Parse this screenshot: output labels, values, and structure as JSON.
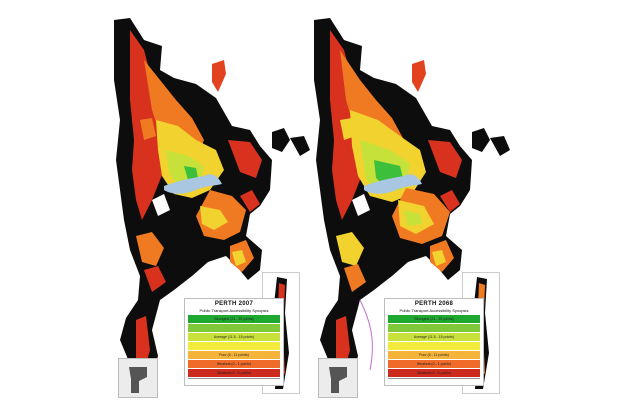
{
  "panels": [
    {
      "title": "PERTH 2007",
      "subtitle": "Public Transport Accessibility Synopsis",
      "legend": [
        {
          "label": "Strongest (21 - 25 points)",
          "color": "#1fa82f"
        },
        {
          "label": "",
          "color": "#7fc83a"
        },
        {
          "label": "Average (11.5 - 15 points)",
          "color": "#c8e03a"
        },
        {
          "label": "",
          "color": "#f2ea3c"
        },
        {
          "label": "Poor (6 - 11 points)",
          "color": "#f4b43a"
        },
        {
          "label": "Weakest (0 - 1 points)",
          "color": "#f06a2a"
        },
        {
          "label": "Weakest (0 - 5 points)",
          "color": "#cc2a1c"
        }
      ]
    },
    {
      "title": "PERTH 2068",
      "subtitle": "Public Transport Accessibility Synopsis",
      "legend": [
        {
          "label": "Strongest (21 - 25 points)",
          "color": "#1fa82f"
        },
        {
          "label": "",
          "color": "#7fc83a"
        },
        {
          "label": "Average (11.5 - 15 points)",
          "color": "#c8e03a"
        },
        {
          "label": "",
          "color": "#f2ea3c"
        },
        {
          "label": "Poor (6 - 11 points)",
          "color": "#f4b43a"
        },
        {
          "label": "Weakest (0 - 1 points)",
          "color": "#f06a2a"
        },
        {
          "label": "Weakest (0 - 5 points)",
          "color": "#cc2a1c"
        }
      ]
    }
  ],
  "colors": {
    "urban_base": "#0d0d0d",
    "red": "#d8321e",
    "orange": "#f07a22",
    "yellow": "#f2d22e",
    "lime": "#c6e23a",
    "green": "#3cbf3a",
    "river": "#a9c7e3"
  }
}
